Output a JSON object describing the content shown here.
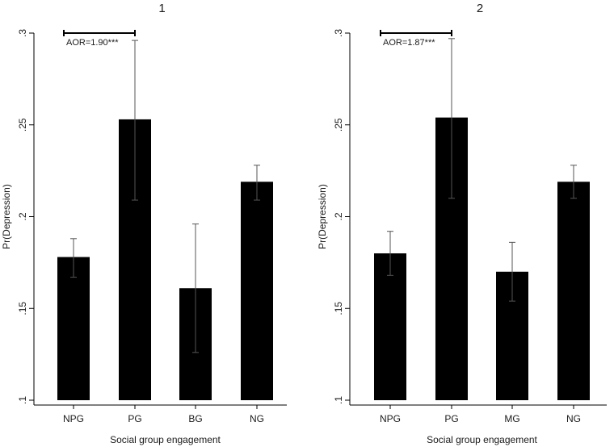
{
  "chart_data": [
    {
      "type": "bar",
      "title": "1",
      "xlabel": "Social group engagement",
      "ylabel": "Pr(Depression)",
      "ylim": [
        0.1,
        0.3
      ],
      "yticks": [
        0.1,
        0.15,
        0.2,
        0.25,
        0.3
      ],
      "ytick_labels": [
        ".1",
        ".15",
        ".2",
        ".25",
        ".3"
      ],
      "categories": [
        "NPG",
        "PG",
        "BG",
        "NG"
      ],
      "values": [
        0.178,
        0.253,
        0.161,
        0.219
      ],
      "ci_low": [
        0.167,
        0.209,
        0.126,
        0.209
      ],
      "ci_high": [
        0.188,
        0.296,
        0.196,
        0.228
      ],
      "bar_color": "#000000",
      "annotation": {
        "text": "AOR=1.90***",
        "from": "NPG",
        "to": "PG",
        "y": 0.3
      }
    },
    {
      "type": "bar",
      "title": "2",
      "xlabel": "Social group engagement",
      "ylabel": "Pr(Depression)",
      "ylim": [
        0.1,
        0.3
      ],
      "yticks": [
        0.1,
        0.15,
        0.2,
        0.25,
        0.3
      ],
      "ytick_labels": [
        ".1",
        ".15",
        ".2",
        ".25",
        ".3"
      ],
      "categories": [
        "NPG",
        "PG",
        "MG",
        "NG"
      ],
      "values": [
        0.18,
        0.254,
        0.17,
        0.219
      ],
      "ci_low": [
        0.168,
        0.21,
        0.154,
        0.21
      ],
      "ci_high": [
        0.192,
        0.297,
        0.186,
        0.228
      ],
      "bar_color": "#000000",
      "annotation": {
        "text": "AOR=1.87***",
        "from": "NPG",
        "to": "PG",
        "y": 0.3
      }
    }
  ]
}
